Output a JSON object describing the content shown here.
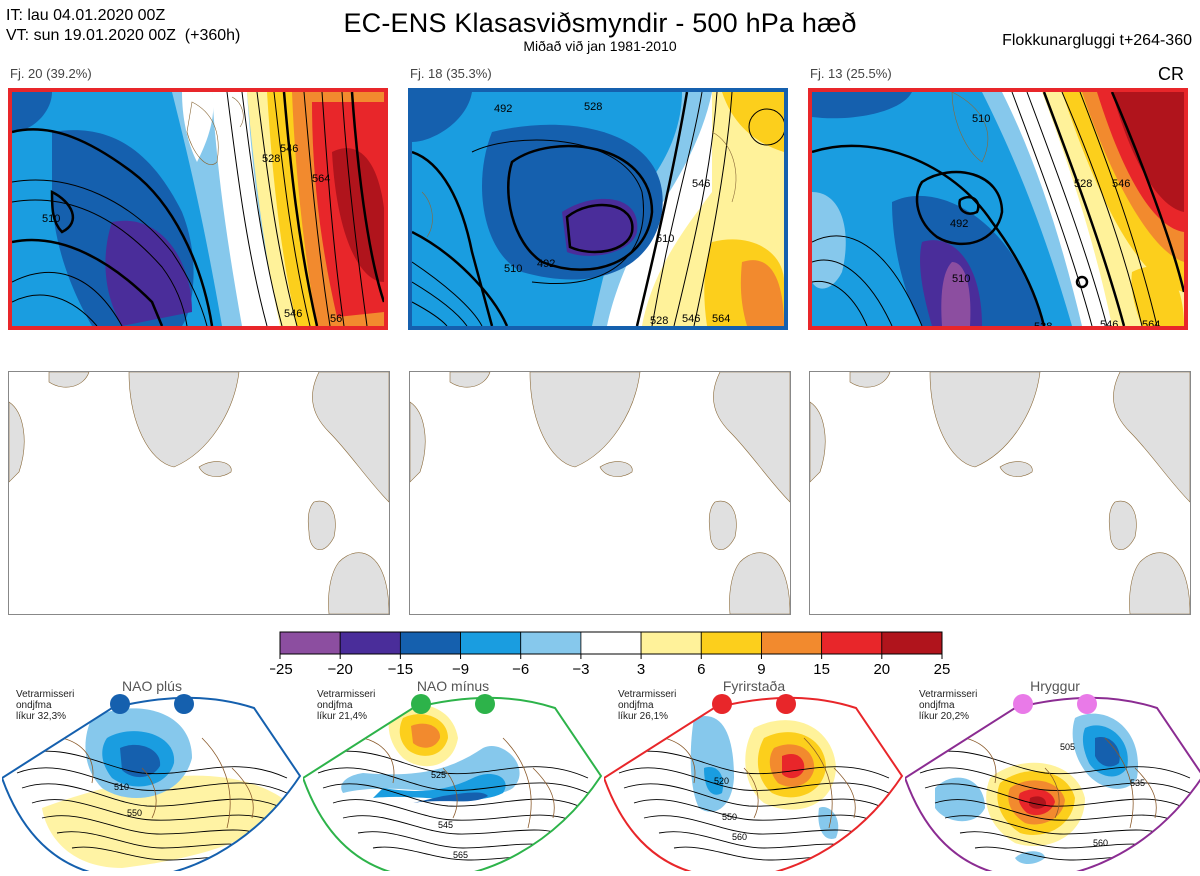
{
  "header": {
    "it_line": "IT: lau 04.01.2020 00Z",
    "vt_line": "VT: sun 19.01.2020 00Z  (+360h)",
    "title": "EC-ENS Klasasviðsmyndir - 500 hPa hæð",
    "subtitle": "Miðað við jan 1981-2010",
    "window": "Flokkunarglugg i t+264-360",
    "regime_code": "CR"
  },
  "panels": [
    {
      "label": "Fj. 20 (39.2%)",
      "border_color": "#e8262a",
      "contour_labels": [
        "510",
        "528",
        "546",
        "564",
        "546",
        "56"
      ]
    },
    {
      "label": "Fj. 18 (35.3%)",
      "border_color": "#1560ae",
      "contour_labels": [
        "492",
        "528",
        "546",
        "510",
        "492",
        "510",
        "528",
        "546",
        "564"
      ]
    },
    {
      "label": "Fj. 13 (25.5%)",
      "border_color": "#e8262a",
      "contour_labels": [
        "510",
        "528",
        "546",
        "492",
        "510",
        "528",
        "546",
        "564"
      ]
    }
  ],
  "colorbar": {
    "colors": [
      "#8c4ea0",
      "#4a2d9a",
      "#1560ae",
      "#1a9de0",
      "#86c8ec",
      "#ffffff",
      "#fff29a",
      "#fccf1c",
      "#f28a2e",
      "#e8262a",
      "#b0141c"
    ],
    "ticks": [
      "−25",
      "−20",
      "−15",
      "−9",
      "−6",
      "−3",
      "3",
      "6",
      "9",
      "15",
      "20",
      "25"
    ]
  },
  "regimes": [
    {
      "name": "NAO plús",
      "note_lines": [
        "Vetrarmisseri",
        "ondjfma",
        "líkur 32,3%"
      ],
      "dot_color": "#1560ae",
      "border_color": "#1560ae",
      "contour_labels": [
        "510",
        "550"
      ]
    },
    {
      "name": "NAO mínus",
      "note_lines": [
        "Vetrarmisseri",
        "ondjfma",
        "líkur 21,4%"
      ],
      "dot_color": "#2db34a",
      "border_color": "#2db34a",
      "contour_labels": [
        "525",
        "545",
        "565"
      ]
    },
    {
      "name": "Fyrirstaða",
      "note_lines": [
        "Vetrarmisseri",
        "ondjfma",
        "líkur 26,1%"
      ],
      "dot_color": "#e8262a",
      "border_color": "#e8262a",
      "contour_labels": [
        "520",
        "550",
        "560"
      ]
    },
    {
      "name": "Hryggur",
      "note_lines": [
        "Vetrarmisseri",
        "ondjfma",
        "líkur 20,2%"
      ],
      "dot_color": "#e97ae8",
      "border_color": "#8b2c92",
      "contour_labels": [
        "505",
        "535",
        "560"
      ]
    }
  ]
}
